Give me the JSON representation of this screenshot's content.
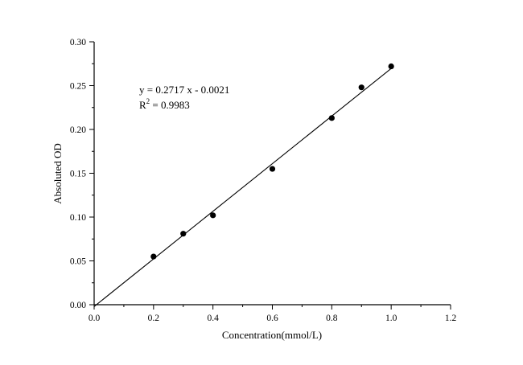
{
  "chart_data": {
    "type": "scatter",
    "title": "",
    "xlabel": "Concentration(mmol/L)",
    "ylabel": "Absoluted OD",
    "xlim": [
      0.0,
      1.2
    ],
    "ylim": [
      0.0,
      0.3
    ],
    "x_ticks": [
      "0.0",
      "0.2",
      "0.4",
      "0.6",
      "0.8",
      "1.0",
      "1.2"
    ],
    "y_ticks": [
      "0.00",
      "0.05",
      "0.10",
      "0.15",
      "0.20",
      "0.25",
      "0.30"
    ],
    "grid": false,
    "legend": "none",
    "series": [
      {
        "marker": "filled-circle",
        "color": "#000000",
        "x": [
          0.2,
          0.3,
          0.4,
          0.6,
          0.8,
          0.9,
          1.0
        ],
        "y": [
          0.055,
          0.081,
          0.102,
          0.155,
          0.213,
          0.248,
          0.272
        ]
      }
    ],
    "fit_line": {
      "slope": 0.2717,
      "intercept": -0.0021,
      "x_range": [
        0.0,
        1.0
      ]
    },
    "annotations": {
      "equation": "y = 0.2717 x - 0.0021",
      "r2_prefix": "R",
      "r2_superscript": "2",
      "r2_value": " = 0.9983"
    }
  }
}
